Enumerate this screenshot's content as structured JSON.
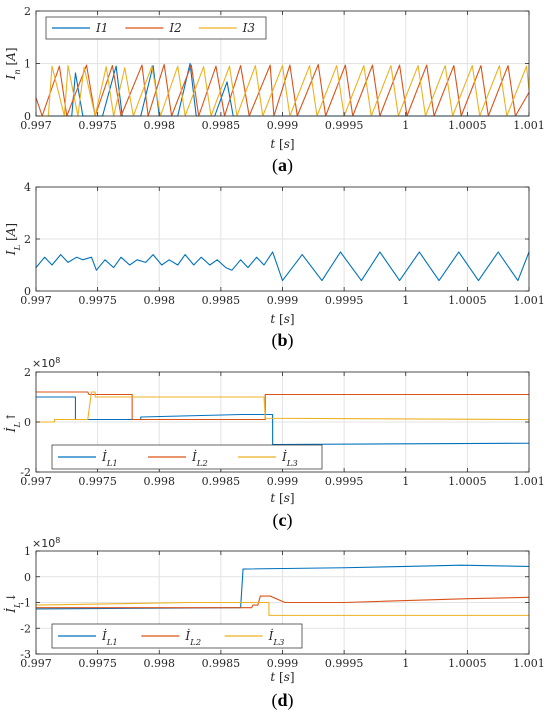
{
  "colors": {
    "series1": "#0072BD",
    "series2": "#D95319",
    "series3": "#EDB120"
  },
  "chart_data": [
    {
      "id": "a",
      "type": "line",
      "caption": "(a)",
      "caption_letter": "a",
      "xlabel": "t [s]",
      "ylabel": "I_n [A]",
      "xlim": [
        0.997,
        1.001
      ],
      "ylim": [
        0,
        2
      ],
      "xticks": [
        0.997,
        0.9975,
        0.998,
        0.9985,
        0.999,
        0.9995,
        1,
        1.0005,
        1.001
      ],
      "xtick_labels": [
        "0.997",
        "0.9975",
        "0.998",
        "0.9985",
        "0.999",
        "0.9995",
        "1",
        "1.0005",
        "1.001"
      ],
      "yticks": [
        0,
        1,
        2
      ],
      "ytick_labels": [
        "0",
        "1",
        "2"
      ],
      "grid": true,
      "legend_position": "top-left",
      "legend_orientation": "horizontal",
      "series": [
        {
          "name": "I1",
          "x": [
            0.997,
            0.99715,
            0.99718,
            0.99729,
            0.99732,
            0.99738,
            0.99754,
            0.99765,
            0.9977,
            0.99785,
            0.99795,
            0.998,
            0.99815,
            0.99825,
            0.9983,
            0.99845,
            0.99855,
            0.9986,
            0.99868,
            0.9987,
            1.001
          ],
          "y": [
            0,
            0,
            0,
            0,
            0.82,
            0,
            0,
            0.95,
            0,
            0,
            0.96,
            0,
            0,
            1.0,
            0,
            0,
            0.65,
            0,
            0,
            0,
            0
          ]
        },
        {
          "name": "I2",
          "x": [
            0.997,
            0.99705,
            0.99719,
            0.99725,
            0.99741,
            0.99748,
            0.99762,
            0.99769,
            0.99786,
            0.99791,
            0.99804,
            0.9981,
            0.99826,
            0.99832,
            0.99846,
            0.99853,
            0.99866,
            0.99873,
            0.9989,
            0.99893,
            0.99906,
            0.99912,
            0.99929,
            0.99935,
            0.99951,
            0.99957,
            0.99973,
            0.99979,
            0.99995,
            1.00001,
            1.00017,
            1.00023,
            1.00039,
            1.00045,
            1.00061,
            1.00067,
            1.00083,
            1.00089,
            1.001
          ],
          "y": [
            0.35,
            0,
            0.95,
            0,
            0.97,
            0,
            0.96,
            0,
            0.97,
            0,
            0.98,
            0,
            0.97,
            0,
            0.95,
            0,
            0.96,
            0,
            0.97,
            0,
            0.97,
            0,
            0.98,
            0,
            0.97,
            0,
            0.97,
            0,
            0.97,
            0,
            0.97,
            0,
            0.96,
            0,
            0.96,
            0,
            0.96,
            0,
            0.45
          ]
        },
        {
          "name": "I3",
          "x": [
            0.997,
            0.9971,
            0.99713,
            0.99723,
            0.99726,
            0.99734,
            0.99739,
            0.99748,
            0.99757,
            0.99763,
            0.99772,
            0.99779,
            0.99794,
            0.99801,
            0.99815,
            0.99821,
            0.99836,
            0.99842,
            0.99857,
            0.99863,
            0.99878,
            0.99884,
            0.999,
            0.99906,
            0.99922,
            0.99928,
            0.99944,
            0.9995,
            0.99966,
            0.99972,
            0.99988,
            0.99994,
            1.0001,
            1.00016,
            1.00032,
            1.00038,
            1.00054,
            1.0006,
            1.00076,
            1.00082,
            1.00098,
            1.001
          ],
          "y": [
            0,
            0,
            0.95,
            0,
            0.96,
            0,
            0.93,
            0,
            0.94,
            0,
            0.92,
            0,
            0.95,
            0,
            0.95,
            0,
            0.94,
            0,
            0.95,
            0,
            0.96,
            0,
            0.96,
            0,
            0.96,
            0,
            0.96,
            0,
            0.96,
            0,
            0.96,
            0,
            0.96,
            0,
            0.96,
            0,
            0.96,
            0,
            0.96,
            0,
            0.95,
            0.5
          ]
        }
      ]
    },
    {
      "id": "b",
      "type": "line",
      "caption": "(b)",
      "caption_letter": "b",
      "xlabel": "t [s]",
      "ylabel": "I_L [A]",
      "xlim": [
        0.997,
        1.001
      ],
      "ylim": [
        0,
        4
      ],
      "xticks": [
        0.997,
        0.9975,
        0.998,
        0.9985,
        0.999,
        0.9995,
        1,
        1.0005,
        1.001
      ],
      "xtick_labels": [
        "0.997",
        "0.9975",
        "0.998",
        "0.9985",
        "0.999",
        "0.9995",
        "1",
        "1.0005",
        "1.001"
      ],
      "yticks": [
        0,
        2,
        4
      ],
      "ytick_labels": [
        "0",
        "2",
        "4"
      ],
      "grid": true,
      "series": [
        {
          "name": "I_L",
          "x": [
            0.997,
            0.99707,
            0.99713,
            0.9972,
            0.99726,
            0.99733,
            0.99738,
            0.99745,
            0.99749,
            0.99756,
            0.99763,
            0.99769,
            0.99776,
            0.99782,
            0.99789,
            0.99795,
            0.99802,
            0.99808,
            0.99815,
            0.99821,
            0.99828,
            0.99834,
            0.99841,
            0.99847,
            0.99854,
            0.99859,
            0.99866,
            0.99872,
            0.99879,
            0.99885,
            0.99892,
            0.999,
            0.99916,
            0.99932,
            0.99947,
            0.99964,
            0.99979,
            0.99995,
            1.00011,
            1.00027,
            1.00043,
            1.00059,
            1.00075,
            1.00091,
            1.001
          ],
          "y": [
            0.9,
            1.3,
            1.0,
            1.4,
            1.1,
            1.3,
            1.2,
            1.3,
            0.8,
            1.2,
            0.9,
            1.3,
            1.0,
            1.2,
            1.1,
            1.4,
            1.0,
            1.2,
            1.0,
            1.4,
            1.0,
            1.3,
            1.0,
            1.2,
            0.9,
            0.8,
            1.2,
            0.9,
            1.3,
            1.0,
            1.5,
            0.4,
            1.4,
            0.4,
            1.5,
            0.4,
            1.5,
            0.4,
            1.5,
            0.4,
            1.5,
            0.4,
            1.5,
            0.4,
            1.5
          ]
        }
      ]
    },
    {
      "id": "c",
      "type": "line",
      "caption": "(c)",
      "caption_letter": "c",
      "xlabel": "t [s]",
      "ylabel": "İ_L↑",
      "exponent": "×10",
      "exponent_power": "8",
      "xlim": [
        0.997,
        1.001
      ],
      "ylim": [
        -2,
        2
      ],
      "xticks": [
        0.997,
        0.9975,
        0.998,
        0.9985,
        0.999,
        0.9995,
        1,
        1.0005,
        1.001
      ],
      "xtick_labels": [
        "0.997",
        "0.9975",
        "0.998",
        "0.9985",
        "0.999",
        "0.9995",
        "1",
        "1.0005",
        "1.001"
      ],
      "yticks": [
        -2,
        0,
        2
      ],
      "ytick_labels": [
        "-2",
        "0",
        "2"
      ],
      "grid": true,
      "legend_position": "bottom-left",
      "legend_orientation": "horizontal",
      "series": [
        {
          "name": "İ_L1",
          "x": [
            0.997,
            0.99732,
            0.99732,
            0.99785,
            0.99785,
            0.99867,
            0.99868,
            0.99868,
            0.99892,
            0.99892,
            1.001
          ],
          "y": [
            1.0,
            1.0,
            0.1,
            0.1,
            0.2,
            0.3,
            0.3,
            0.3,
            0.3,
            -0.9,
            -0.85
          ]
        },
        {
          "name": "İ_L2",
          "x": [
            0.997,
            0.99742,
            0.99743,
            0.99778,
            0.99778,
            0.99886,
            0.99886,
            1.001
          ],
          "y": [
            1.2,
            1.2,
            1.1,
            1.1,
            0.1,
            0.1,
            1.1,
            1.1
          ]
        },
        {
          "name": "İ_L3",
          "x": [
            0.997,
            0.99715,
            0.99715,
            0.99742,
            0.99745,
            0.99748,
            0.99748,
            0.99885,
            0.99886,
            0.99886,
            1.001
          ],
          "y": [
            0,
            0,
            0.1,
            0.1,
            1.2,
            1.2,
            1.0,
            1.0,
            0.15,
            0.15,
            0.1
          ]
        }
      ]
    },
    {
      "id": "d",
      "type": "line",
      "caption": "(d)",
      "caption_letter": "d",
      "xlabel": "t [s]",
      "ylabel": "İ_L↓",
      "exponent": "×10",
      "exponent_power": "8",
      "xlim": [
        0.997,
        1.001
      ],
      "ylim": [
        -3,
        1
      ],
      "xticks": [
        0.997,
        0.9975,
        0.998,
        0.9985,
        0.999,
        0.9995,
        1,
        1.0005,
        1.001
      ],
      "xtick_labels": [
        "0.997",
        "0.9975",
        "0.998",
        "0.9985",
        "0.999",
        "0.9995",
        "1",
        "1.0005",
        "1.001"
      ],
      "yticks": [
        -3,
        -2,
        -1,
        0,
        1
      ],
      "ytick_labels": [
        "-3",
        "-2",
        "-1",
        "0",
        "1"
      ],
      "grid": true,
      "legend_position": "bottom-left",
      "legend_orientation": "horizontal",
      "series": [
        {
          "name": "İ_L1",
          "x": [
            0.997,
            0.99865,
            0.99866,
            0.99868,
            0.9995,
            1.0,
            1.00045,
            1.001
          ],
          "y": [
            -1.25,
            -1.2,
            -1.2,
            0.3,
            0.35,
            0.4,
            0.45,
            0.4
          ]
        },
        {
          "name": "İ_L2",
          "x": [
            0.997,
            0.99875,
            0.99876,
            0.9988,
            0.99882,
            0.9989,
            0.99902,
            0.99903,
            0.9995,
            1.0005,
            1.001
          ],
          "y": [
            -1.2,
            -1.2,
            -1.1,
            -1.1,
            -0.75,
            -0.75,
            -1.0,
            -1.0,
            -1.0,
            -0.85,
            -0.8
          ]
        },
        {
          "name": "İ_L3",
          "x": [
            0.997,
            0.99825,
            0.9985,
            0.99865,
            0.99888,
            0.99889,
            0.99889,
            1.001
          ],
          "y": [
            -1.1,
            -1.0,
            -1.0,
            -1.0,
            -1.0,
            -1.0,
            -1.5,
            -1.5
          ]
        }
      ]
    }
  ]
}
